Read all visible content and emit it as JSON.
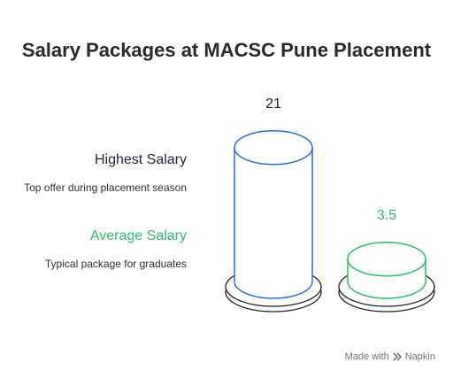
{
  "title": "Salary Packages at MACSC Pune Placement",
  "legend": [
    {
      "title": "Highest Salary",
      "description": "Top offer during placement season",
      "color": "#1f2a44"
    },
    {
      "title": "Average Salary",
      "description": "Typical package for graduates",
      "color": "#2bbf6a"
    }
  ],
  "footer": {
    "made_with": "Made with",
    "brand": "Napkin",
    "brand_icon": "napkin-icon"
  },
  "chart_data": {
    "type": "bar",
    "style": "cylinder",
    "title": "Salary Packages at MACSC Pune Placement",
    "categories": [
      "Highest Salary",
      "Average Salary"
    ],
    "values": [
      21,
      3.5
    ],
    "value_labels": [
      "21",
      "3.5"
    ],
    "colors": [
      "#2f6fe0",
      "#2bbf6a"
    ],
    "grid": false
  }
}
